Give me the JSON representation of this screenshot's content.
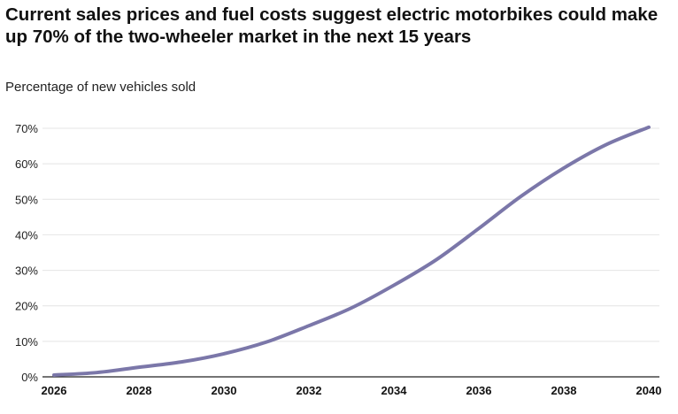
{
  "chart_data": {
    "type": "line",
    "title": "Current sales prices and fuel costs suggest electric motorbikes could make up 70% of the two-wheeler market in the next 15 years",
    "subtitle": "Percentage of new vehicles sold",
    "xlabel": "",
    "ylabel": "",
    "xlim": [
      2026,
      2040
    ],
    "ylim": [
      0,
      70
    ],
    "grid": true,
    "x_ticks": [
      "2026",
      "2028",
      "2030",
      "2032",
      "2034",
      "2036",
      "2038",
      "2040"
    ],
    "y_ticks": [
      "0%",
      "10%",
      "20%",
      "30%",
      "40%",
      "50%",
      "60%",
      "70%"
    ],
    "line_color": "#7b77a9",
    "series": [
      {
        "x": [
          2026,
          2027,
          2028,
          2029,
          2030,
          2031,
          2032,
          2033,
          2034,
          2035,
          2036,
          2037,
          2038,
          2039,
          2040
        ],
        "values": [
          0.5,
          1.2,
          2.7,
          4.2,
          6.5,
          9.8,
          14.4,
          19.4,
          25.8,
          33.0,
          41.8,
          50.9,
          58.8,
          65.4,
          70.3
        ]
      }
    ]
  }
}
